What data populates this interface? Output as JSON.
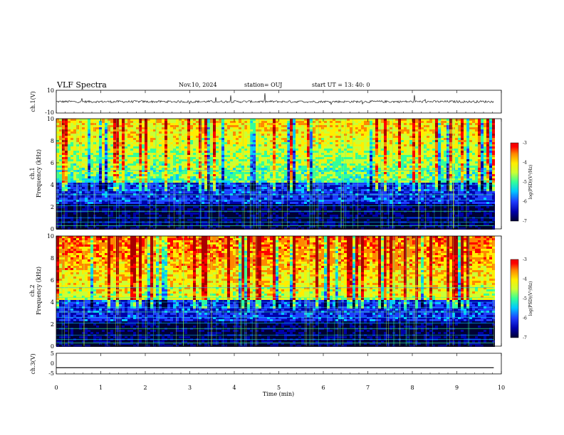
{
  "header": {
    "title": "VLF Spectra",
    "date": "Nov.10, 2024",
    "station": "station= OUJ",
    "start": "start  UT  =   13: 40: 0"
  },
  "chart_data": [
    {
      "type": "line",
      "name": "ch1-waveform",
      "ylabel": "ch.1(V)",
      "ylim": [
        -10,
        10
      ],
      "y_ticks": [
        "10",
        "-10"
      ],
      "description_values": {
        "baseline": 0,
        "noise_amplitude": 1,
        "spike_amplitude": 5
      }
    },
    {
      "type": "heatmap",
      "name": "ch1-spectrogram",
      "ylabel": "ch.1\nFrequency  (kHz)",
      "ylabel_line1": "ch.1",
      "ylabel_line2": "Frequency  (kHz)",
      "ylim": [
        0,
        10
      ],
      "xlim": [
        0,
        10
      ],
      "y_ticks": [
        "0",
        "2",
        "4",
        "6",
        "8",
        "10"
      ],
      "colorbar": {
        "label": "log(PSD)(V²/Hz)",
        "range": [
          -7,
          -3
        ],
        "ticks": [
          "-3",
          "-4",
          "-5",
          "-6",
          "-7"
        ]
      }
    },
    {
      "type": "heatmap",
      "name": "ch2-spectrogram",
      "ylabel_line1": "ch.2",
      "ylabel_line2": "Frequency  (kHz)",
      "ylim": [
        0,
        10
      ],
      "xlim": [
        0,
        10
      ],
      "y_ticks": [
        "0",
        "2",
        "4",
        "6",
        "8",
        "10"
      ],
      "colorbar": {
        "label": "log(PSD)(V²/Hz)",
        "range": [
          -7,
          -3
        ],
        "ticks": [
          "-3",
          "-4",
          "-5",
          "-6",
          "-7"
        ]
      }
    },
    {
      "type": "line",
      "name": "ch3-waveform",
      "ylabel": "ch.3(V)",
      "ylim": [
        -5,
        5
      ],
      "y_ticks": [
        "5",
        "0",
        "-5"
      ],
      "series": [
        {
          "values": [
            -2,
            -2
          ]
        }
      ]
    }
  ],
  "x_axis": {
    "label": "Time  (min)",
    "range": [
      0,
      10
    ],
    "ticks": [
      "0",
      "1",
      "2",
      "3",
      "4",
      "5",
      "6",
      "7",
      "8",
      "9",
      "10"
    ],
    "data_end": 9.83
  },
  "colormap": [
    "#000033",
    "#0000aa",
    "#1f3dff",
    "#00c8ff",
    "#33ff99",
    "#ccff33",
    "#ffee00",
    "#ff8800",
    "#ff0000",
    "#aa0000"
  ]
}
